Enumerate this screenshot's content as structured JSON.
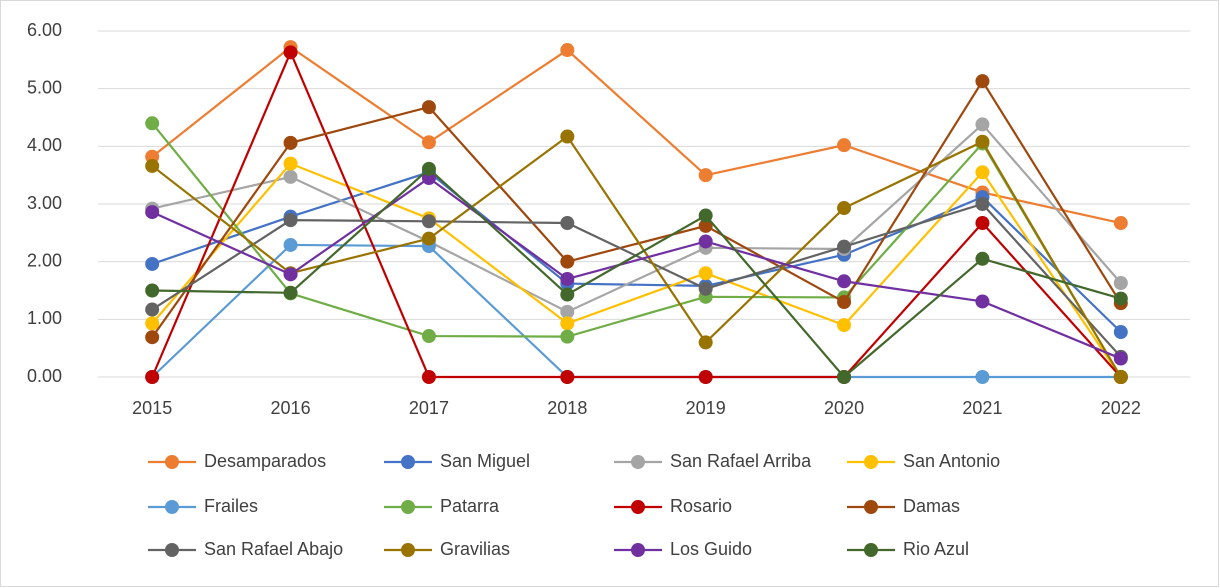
{
  "chart_data": {
    "type": "line",
    "categories": [
      "2015",
      "2016",
      "2017",
      "2018",
      "2019",
      "2020",
      "2021",
      "2022"
    ],
    "ylim": [
      0,
      6
    ],
    "yticks": [
      {
        "value": 0,
        "label": "0.00"
      },
      {
        "value": 1,
        "label": "1.00"
      },
      {
        "value": 2,
        "label": "2.00"
      },
      {
        "value": 3,
        "label": "3.00"
      },
      {
        "value": 4,
        "label": "4.00"
      },
      {
        "value": 5,
        "label": "5.00"
      },
      {
        "value": 6,
        "label": "6.00"
      }
    ],
    "grid": true,
    "legend": "bottom",
    "series": [
      {
        "name": "Desamparados",
        "color": "#ED7D31",
        "values": [
          3.82,
          5.72,
          4.07,
          5.67,
          3.5,
          4.02,
          3.2,
          2.67
        ]
      },
      {
        "name": "San Miguel",
        "color": "#4472C4",
        "values": [
          1.96,
          2.78,
          3.55,
          1.62,
          1.58,
          2.12,
          3.12,
          0.78
        ]
      },
      {
        "name": "San Rafael Arriba",
        "color": "#A5A5A5",
        "values": [
          2.92,
          3.47,
          2.35,
          1.13,
          2.24,
          2.22,
          4.38,
          1.63
        ]
      },
      {
        "name": "San Antonio",
        "color": "#FFC000",
        "values": [
          0.93,
          3.7,
          2.75,
          0.93,
          1.8,
          0.9,
          3.55,
          0
        ]
      },
      {
        "name": "Frailes",
        "color": "#5B9BD5",
        "values": [
          0,
          2.29,
          2.27,
          0,
          0,
          0,
          0,
          0
        ]
      },
      {
        "name": "Patarra",
        "color": "#70AD47",
        "values": [
          4.4,
          1.45,
          0.71,
          0.7,
          1.39,
          1.38,
          4.05,
          0
        ]
      },
      {
        "name": "Rosario",
        "color": "#C00000",
        "values": [
          0,
          5.63,
          0,
          0,
          0,
          0,
          2.67,
          0
        ]
      },
      {
        "name": "Damas",
        "color": "#9E480E",
        "values": [
          0.69,
          4.06,
          4.68,
          2.0,
          2.62,
          1.3,
          5.13,
          1.28
        ]
      },
      {
        "name": "San Rafael Abajo",
        "color": "#636363",
        "values": [
          1.17,
          2.72,
          2.7,
          2.67,
          1.53,
          2.26,
          3.0,
          0.35
        ]
      },
      {
        "name": "Gravilias",
        "color": "#997300",
        "values": [
          3.66,
          1.8,
          2.4,
          4.17,
          0.6,
          2.93,
          4.08,
          0
        ]
      },
      {
        "name": "Los Guido",
        "color": "#7030A0",
        "values": [
          2.86,
          1.78,
          3.45,
          1.7,
          2.35,
          1.66,
          1.31,
          0.32
        ]
      },
      {
        "name": "Rio Azul",
        "color": "#43682B",
        "values": [
          1.5,
          1.46,
          3.61,
          1.43,
          2.8,
          0,
          2.05,
          1.36
        ]
      }
    ]
  }
}
